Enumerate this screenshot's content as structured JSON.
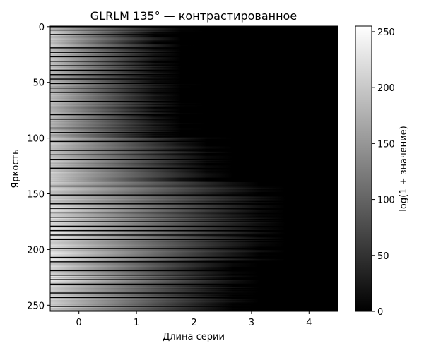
{
  "chart_data": {
    "type": "heatmap",
    "title": "GLRLM 135° — контрастированное",
    "xlabel": "Длина серии",
    "ylabel": "Яркость",
    "colorbar_label": "log(1 + значение)",
    "colormap": "gray",
    "x_ticks": [
      0,
      1,
      2,
      3,
      4
    ],
    "y_ticks": [
      0,
      50,
      100,
      150,
      200,
      250
    ],
    "colorbar_ticks": [
      0,
      50,
      100,
      150,
      200,
      250
    ],
    "xlim": [
      -0.5,
      4.5
    ],
    "ylim": [
      255.5,
      -0.5
    ],
    "clim": [
      0,
      255
    ],
    "rows": 256,
    "cols": 5,
    "row_profile": {
      "description_levels": "approximate intensity of the first run-length column by brightness band",
      "bands": [
        {
          "from": 0,
          "to": 40,
          "value": 210
        },
        {
          "from": 40,
          "to": 100,
          "value": 195
        },
        {
          "from": 100,
          "to": 160,
          "value": 215
        },
        {
          "from": 160,
          "to": 230,
          "value": 235
        },
        {
          "from": 230,
          "to": 255,
          "value": 220
        }
      ],
      "decay_extent": [
        {
          "from": 0,
          "to": 100,
          "value": 1.6
        },
        {
          "from": 100,
          "to": 140,
          "value": 2.3
        },
        {
          "from": 140,
          "to": 210,
          "value": 3.3
        },
        {
          "from": 210,
          "to": 255,
          "value": 2.8
        }
      ]
    }
  }
}
